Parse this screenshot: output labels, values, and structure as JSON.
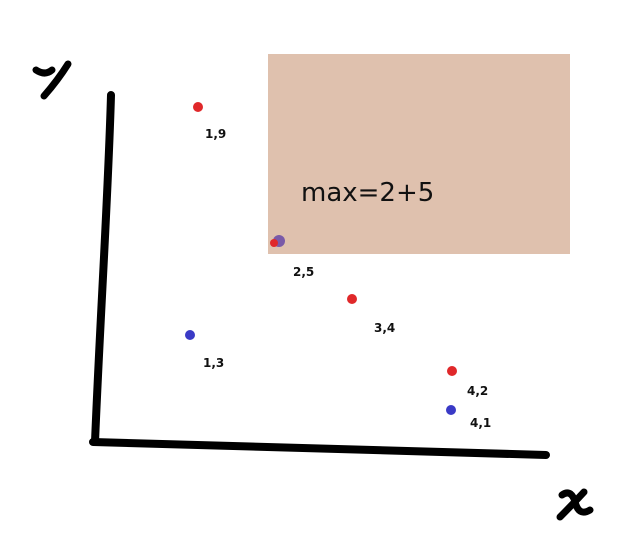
{
  "diagram": {
    "axis_labels": {
      "x": "x",
      "y": "y"
    },
    "region": {
      "label": "max=2+5",
      "fill": "#dfc1ae"
    },
    "colors": {
      "red": "#e0282a",
      "blue": "#3a3ac6",
      "purple": "#7a5aa8"
    },
    "points": [
      {
        "label": "1,9",
        "color": "red"
      },
      {
        "label": "2,5",
        "color": "purple"
      },
      {
        "label": "3,4",
        "color": "red"
      },
      {
        "label": "1,3",
        "color": "blue"
      },
      {
        "label": "4,2",
        "color": "red"
      },
      {
        "label": "4,1",
        "color": "blue"
      }
    ]
  }
}
